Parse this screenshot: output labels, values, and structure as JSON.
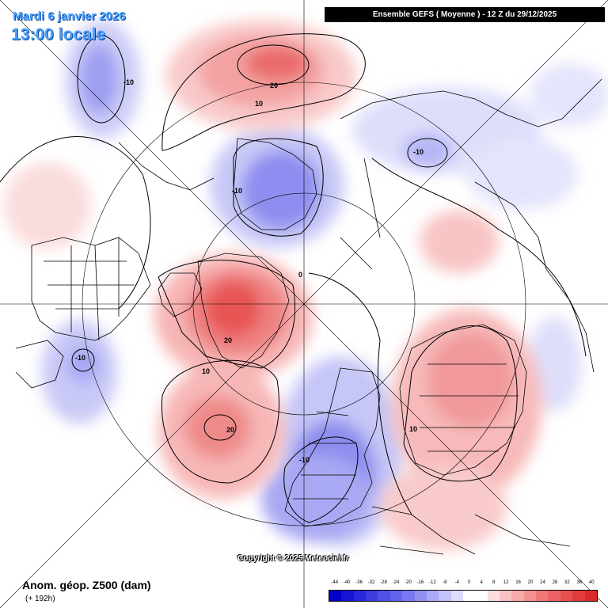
{
  "header": {
    "date": "Mardi 6 janvier 2026",
    "local_time": "13:00 locale",
    "run_info": "Ensemble GEFS  ( Moyenne )  -  12 Z du 29/12/2025"
  },
  "footer": {
    "copyright": "Copyright © 2025 Meteociel.fr",
    "field": "Anom. géop. Z500 (dam)",
    "lead": "(+ 192h)"
  },
  "legend": {
    "ticks": [
      "-44",
      "-40",
      "-36",
      "-32",
      "-28",
      "-24",
      "-20",
      "-16",
      "-12",
      "-8",
      "-4",
      "0",
      "4",
      "8",
      "12",
      "16",
      "20",
      "24",
      "28",
      "32",
      "36",
      "40"
    ],
    "colors": [
      "#0000c8",
      "#1414d2",
      "#2828dc",
      "#3c3ce1",
      "#5050e6",
      "#6464eb",
      "#7878f0",
      "#9191f3",
      "#aaaaf7",
      "#c3c3fa",
      "#dcdcfc",
      "#ffffff",
      "#ffffff",
      "#fcdcdc",
      "#fac3c3",
      "#f7aaaa",
      "#f39191",
      "#f07878",
      "#eb6464",
      "#e65050",
      "#e13c3c",
      "#dc2828"
    ]
  },
  "map": {
    "contour_labels": [
      {
        "text": "-10"
      },
      {
        "text": "20"
      },
      {
        "text": "10"
      },
      {
        "text": "-10"
      },
      {
        "text": "-10"
      },
      {
        "text": "0"
      },
      {
        "text": "20"
      },
      {
        "text": "10"
      },
      {
        "text": "-10"
      },
      {
        "text": "20"
      },
      {
        "text": "-10"
      },
      {
        "text": "10"
      }
    ]
  }
}
